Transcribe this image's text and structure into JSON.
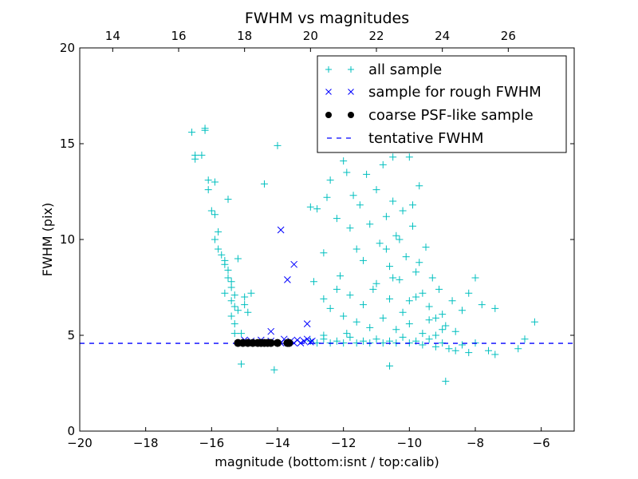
{
  "chart_data": {
    "type": "scatter",
    "title": "FWHM vs magnitudes",
    "xlabel": "magnitude (bottom:isnt / top:calib)",
    "ylabel": "FWHM (pix)",
    "xlim": [
      -20,
      -5
    ],
    "ylim": [
      0,
      20
    ],
    "top_xlim": [
      13,
      28
    ],
    "x_ticks": [
      -20,
      -18,
      -16,
      -14,
      -12,
      -10,
      -8,
      -6
    ],
    "x_tick_labels": [
      "−20",
      "−18",
      "−16",
      "−14",
      "−12",
      "−10",
      "−8",
      "−6"
    ],
    "top_ticks": [
      14,
      16,
      18,
      20,
      22,
      24,
      26
    ],
    "top_tick_labels": [
      "14",
      "16",
      "18",
      "20",
      "22",
      "24",
      "26"
    ],
    "y_ticks": [
      0,
      5,
      10,
      15,
      20
    ],
    "y_tick_labels": [
      "0",
      "5",
      "10",
      "15",
      "20"
    ],
    "grid": false,
    "legend_position": "top-right",
    "colors": {
      "all": "#00bfbf",
      "rough": "#0000ff",
      "coarse": "#000000",
      "line": "#0000ff"
    },
    "series": [
      {
        "name": "all sample",
        "marker": "plus",
        "points": [
          [
            -16.6,
            15.6
          ],
          [
            -16.5,
            14.2
          ],
          [
            -16.5,
            14.4
          ],
          [
            -16.3,
            14.4
          ],
          [
            -16.2,
            15.7
          ],
          [
            -16.2,
            15.8
          ],
          [
            -16.1,
            13.1
          ],
          [
            -16.1,
            12.6
          ],
          [
            -15.9,
            13.0
          ],
          [
            -16.0,
            11.5
          ],
          [
            -15.9,
            11.3
          ],
          [
            -15.8,
            10.4
          ],
          [
            -15.9,
            10.0
          ],
          [
            -15.8,
            9.5
          ],
          [
            -15.7,
            9.2
          ],
          [
            -15.6,
            8.9
          ],
          [
            -15.5,
            12.1
          ],
          [
            -15.6,
            8.7
          ],
          [
            -15.5,
            8.4
          ],
          [
            -15.5,
            8.0
          ],
          [
            -15.4,
            7.8
          ],
          [
            -15.4,
            7.5
          ],
          [
            -15.6,
            7.2
          ],
          [
            -15.3,
            7.1
          ],
          [
            -15.4,
            6.8
          ],
          [
            -15.3,
            6.5
          ],
          [
            -15.2,
            6.3
          ],
          [
            -15.4,
            6.0
          ],
          [
            -15.3,
            5.6
          ],
          [
            -15.3,
            5.1
          ],
          [
            -15.1,
            5.1
          ],
          [
            -15.0,
            6.6
          ],
          [
            -14.9,
            6.2
          ],
          [
            -14.8,
            7.2
          ],
          [
            -15.1,
            3.5
          ],
          [
            -14.1,
            3.2
          ],
          [
            -14.0,
            14.9
          ],
          [
            -14.4,
            12.9
          ],
          [
            -15.2,
            9.0
          ],
          [
            -15.0,
            7.0
          ],
          [
            -13.0,
            4.7
          ],
          [
            -12.8,
            4.6
          ],
          [
            -12.6,
            4.8
          ],
          [
            -12.4,
            4.6
          ],
          [
            -12.2,
            4.7
          ],
          [
            -12.0,
            4.6
          ],
          [
            -11.8,
            4.9
          ],
          [
            -11.6,
            4.6
          ],
          [
            -11.4,
            4.7
          ],
          [
            -11.2,
            4.6
          ],
          [
            -11.0,
            4.8
          ],
          [
            -10.8,
            4.6
          ],
          [
            -10.6,
            4.7
          ],
          [
            -10.4,
            4.6
          ],
          [
            -10.2,
            4.9
          ],
          [
            -10.0,
            4.6
          ],
          [
            -9.8,
            4.7
          ],
          [
            -9.6,
            4.5
          ],
          [
            -9.4,
            4.8
          ],
          [
            -9.2,
            4.4
          ],
          [
            -9.0,
            4.6
          ],
          [
            -8.8,
            4.3
          ],
          [
            -8.6,
            4.2
          ],
          [
            -8.4,
            4.5
          ],
          [
            -8.2,
            4.1
          ],
          [
            -8.0,
            4.6
          ],
          [
            -7.6,
            4.2
          ],
          [
            -7.4,
            4.0
          ],
          [
            -6.7,
            4.3
          ],
          [
            -6.5,
            4.8
          ],
          [
            -6.2,
            5.7
          ],
          [
            -8.9,
            2.6
          ],
          [
            -10.6,
            3.4
          ],
          [
            -12.6,
            5.0
          ],
          [
            -11.9,
            5.1
          ],
          [
            -13.0,
            11.7
          ],
          [
            -12.8,
            11.6
          ],
          [
            -12.6,
            9.3
          ],
          [
            -12.5,
            12.2
          ],
          [
            -12.4,
            13.1
          ],
          [
            -12.2,
            11.1
          ],
          [
            -12.1,
            8.1
          ],
          [
            -12.0,
            14.1
          ],
          [
            -11.9,
            13.5
          ],
          [
            -11.8,
            10.6
          ],
          [
            -11.7,
            12.3
          ],
          [
            -11.6,
            9.5
          ],
          [
            -11.5,
            11.8
          ],
          [
            -11.4,
            8.9
          ],
          [
            -11.3,
            13.4
          ],
          [
            -11.2,
            10.8
          ],
          [
            -11.1,
            7.4
          ],
          [
            -11.0,
            12.6
          ],
          [
            -10.9,
            9.8
          ],
          [
            -10.8,
            13.9
          ],
          [
            -10.7,
            11.2
          ],
          [
            -10.6,
            8.6
          ],
          [
            -10.5,
            14.3
          ],
          [
            -10.5,
            12.0
          ],
          [
            -10.4,
            10.2
          ],
          [
            -10.3,
            7.9
          ],
          [
            -10.2,
            11.5
          ],
          [
            -10.1,
            9.1
          ],
          [
            -10.0,
            14.3
          ],
          [
            -10.0,
            6.8
          ],
          [
            -9.9,
            10.7
          ],
          [
            -9.8,
            8.3
          ],
          [
            -9.7,
            12.8
          ],
          [
            -9.6,
            7.2
          ],
          [
            -9.5,
            9.6
          ],
          [
            -9.4,
            6.5
          ],
          [
            -9.3,
            8.0
          ],
          [
            -9.2,
            5.9
          ],
          [
            -9.1,
            7.4
          ],
          [
            -9.0,
            6.1
          ],
          [
            -8.9,
            5.5
          ],
          [
            -8.7,
            6.8
          ],
          [
            -8.6,
            5.2
          ],
          [
            -8.4,
            6.3
          ],
          [
            -8.2,
            7.2
          ],
          [
            -8.0,
            8.0
          ],
          [
            -7.8,
            6.6
          ],
          [
            -7.4,
            6.4
          ],
          [
            -12.9,
            7.8
          ],
          [
            -12.6,
            6.9
          ],
          [
            -12.4,
            6.4
          ],
          [
            -12.2,
            7.4
          ],
          [
            -12.0,
            6.0
          ],
          [
            -11.8,
            7.1
          ],
          [
            -11.6,
            5.7
          ],
          [
            -11.4,
            6.6
          ],
          [
            -11.2,
            5.4
          ],
          [
            -11.0,
            7.7
          ],
          [
            -10.8,
            5.9
          ],
          [
            -10.6,
            6.9
          ],
          [
            -10.4,
            5.3
          ],
          [
            -10.2,
            6.2
          ],
          [
            -10.0,
            5.6
          ],
          [
            -9.8,
            7.0
          ],
          [
            -9.6,
            5.1
          ],
          [
            -9.4,
            5.8
          ],
          [
            -9.2,
            5.0
          ],
          [
            -9.0,
            5.3
          ],
          [
            -10.7,
            9.5
          ],
          [
            -10.3,
            10.0
          ],
          [
            -9.9,
            11.8
          ],
          [
            -10.5,
            8.0
          ],
          [
            -9.7,
            8.8
          ]
        ]
      },
      {
        "name": "sample for rough FWHM",
        "marker": "x",
        "points": [
          [
            -13.9,
            10.5
          ],
          [
            -13.5,
            8.7
          ],
          [
            -13.7,
            7.9
          ],
          [
            -13.1,
            5.6
          ],
          [
            -14.2,
            5.2
          ],
          [
            -15.0,
            4.75
          ],
          [
            -14.8,
            4.7
          ],
          [
            -14.5,
            4.75
          ],
          [
            -14.2,
            4.7
          ],
          [
            -13.9,
            4.6
          ],
          [
            -13.8,
            4.8
          ],
          [
            -13.6,
            4.7
          ],
          [
            -13.5,
            4.6
          ],
          [
            -13.4,
            4.75
          ],
          [
            -13.3,
            4.6
          ],
          [
            -13.2,
            4.7
          ],
          [
            -13.1,
            4.8
          ],
          [
            -13.0,
            4.65
          ],
          [
            -12.95,
            4.7
          ]
        ]
      },
      {
        "name": "coarse PSF-like sample",
        "marker": "dot",
        "points": [
          [
            -15.2,
            4.6
          ],
          [
            -15.05,
            4.6
          ],
          [
            -14.9,
            4.6
          ],
          [
            -14.75,
            4.6
          ],
          [
            -14.6,
            4.6
          ],
          [
            -14.5,
            4.6
          ],
          [
            -14.4,
            4.6
          ],
          [
            -14.3,
            4.6
          ],
          [
            -14.2,
            4.6
          ],
          [
            -14.0,
            4.6
          ],
          [
            -13.7,
            4.6
          ],
          [
            -13.65,
            4.6
          ]
        ]
      },
      {
        "name": "tentative FWHM",
        "marker": "dashed-line",
        "value": 4.58
      }
    ]
  }
}
